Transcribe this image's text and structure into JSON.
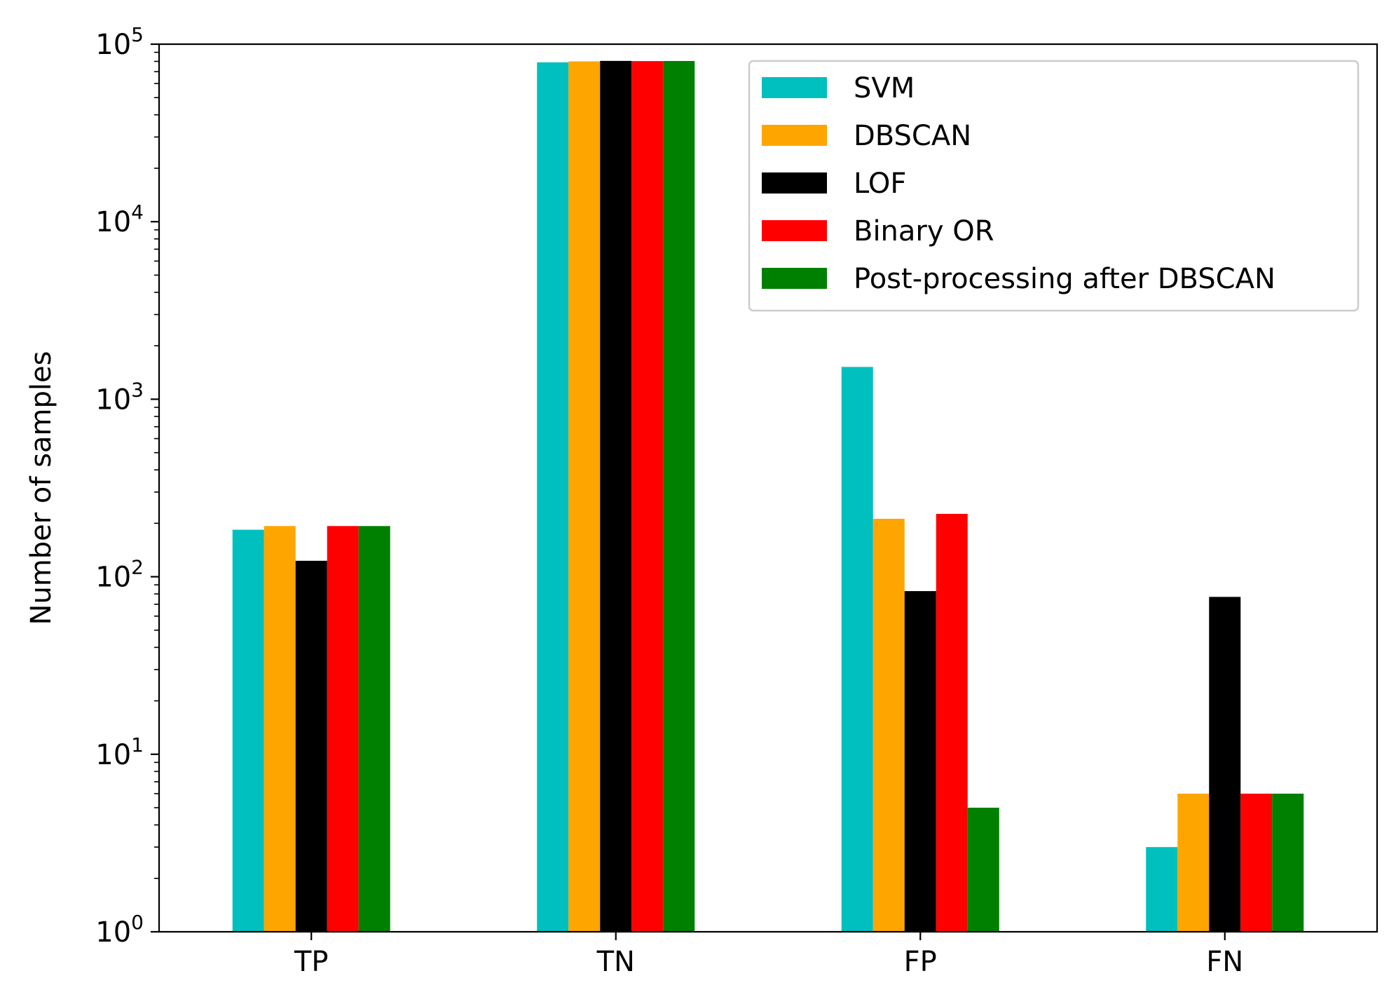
{
  "chart_data": {
    "type": "bar",
    "title": "",
    "xlabel": "",
    "ylabel": "Number of samples",
    "yscale": "log",
    "ylim": [
      1,
      100000
    ],
    "yticks": [
      1,
      10,
      100,
      1000,
      10000,
      100000
    ],
    "ytick_labels": [
      {
        "base": "10",
        "exp": "0"
      },
      {
        "base": "10",
        "exp": "1"
      },
      {
        "base": "10",
        "exp": "2"
      },
      {
        "base": "10",
        "exp": "3"
      },
      {
        "base": "10",
        "exp": "4"
      },
      {
        "base": "10",
        "exp": "5"
      }
    ],
    "categories": [
      "TP",
      "TN",
      "FP",
      "FN"
    ],
    "series": [
      {
        "name": "SVM",
        "color": "#00bfbf",
        "values": [
          184,
          79000,
          1520,
          3
        ]
      },
      {
        "name": "DBSCAN",
        "color": "#ffa500",
        "values": [
          193,
          80000,
          212,
          6
        ]
      },
      {
        "name": "LOF",
        "color": "#000000",
        "values": [
          123,
          80500,
          83,
          77
        ]
      },
      {
        "name": "Binary OR",
        "color": "#ff0000",
        "values": [
          193,
          80300,
          226,
          6
        ]
      },
      {
        "name": "Post-processing after DBSCAN",
        "color": "#008000",
        "values": [
          193,
          80400,
          5,
          6
        ]
      }
    ],
    "grid": false,
    "legend_position": "top-right"
  }
}
